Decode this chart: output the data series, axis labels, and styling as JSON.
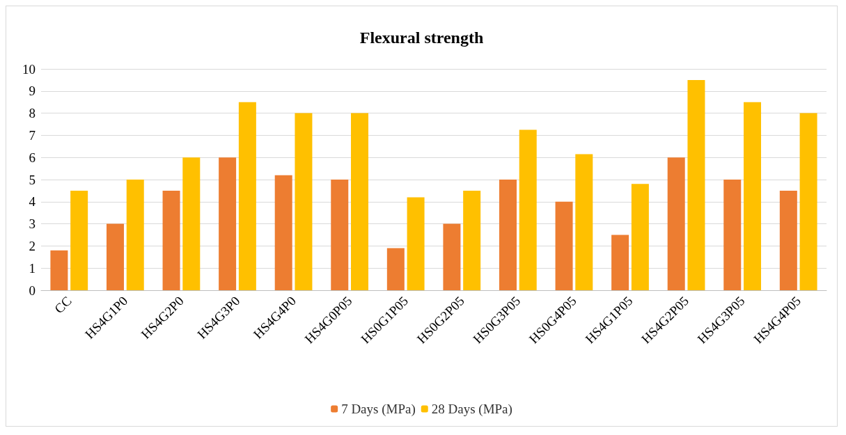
{
  "chart_data": {
    "type": "bar",
    "title": "Flexural strength",
    "categories": [
      "CC",
      "HS4G1P0",
      "HS4G2P0",
      "HS4G3P0",
      "HS4G4P0",
      "HS4G0P05",
      "HS0G1P05",
      "HS0G2P05",
      "HS0G3P05",
      "HS0G4P05",
      "HS4G1P05",
      "HS4G2P05",
      "HS4G3P05",
      "HS4G4P05"
    ],
    "series": [
      {
        "name": "7 Days (MPa)",
        "color": "#ed7d31",
        "values": [
          1.8,
          3.0,
          4.5,
          6.0,
          5.2,
          5.0,
          1.9,
          3.0,
          5.0,
          4.0,
          2.5,
          6.0,
          5.0,
          4.5
        ]
      },
      {
        "name": "28 Days (MPa)",
        "color": "#ffc000",
        "values": [
          4.5,
          5.0,
          6.0,
          8.5,
          8.0,
          8.0,
          4.2,
          4.5,
          7.25,
          6.15,
          4.8,
          9.5,
          8.5,
          8.0
        ]
      }
    ],
    "ylim": [
      0,
      10
    ],
    "yticks": [
      0,
      1,
      2,
      3,
      4,
      5,
      6,
      7,
      8,
      9,
      10
    ],
    "grid": "y",
    "legend": "bottom"
  }
}
